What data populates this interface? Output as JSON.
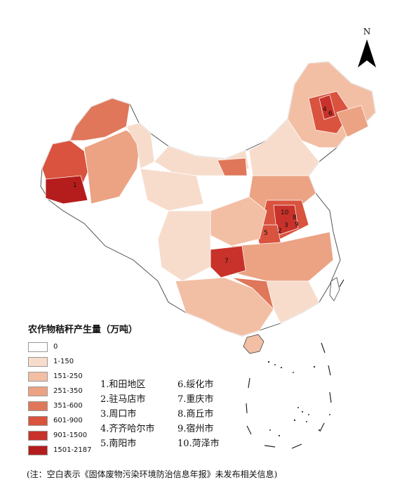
{
  "north_label": "N",
  "legend": {
    "title": "农作物秸秆产生量（万吨）",
    "bins": [
      {
        "label": "0",
        "color": "#ffffff"
      },
      {
        "label": "1-150",
        "color": "#f7dccc"
      },
      {
        "label": "151-250",
        "color": "#f2bfa5"
      },
      {
        "label": "251-350",
        "color": "#eba383"
      },
      {
        "label": "351-600",
        "color": "#e0775a"
      },
      {
        "label": "601-900",
        "color": "#d9533e"
      },
      {
        "label": "901-1500",
        "color": "#c8322a"
      },
      {
        "label": "1501-2187",
        "color": "#b51d1c"
      }
    ]
  },
  "top_regions": [
    {
      "rank": "1",
      "label": "1.和田地区"
    },
    {
      "rank": "2",
      "label": "2.驻马店市"
    },
    {
      "rank": "3",
      "label": "3.周口市"
    },
    {
      "rank": "4",
      "label": "4.齐齐哈尔市"
    },
    {
      "rank": "5",
      "label": "5.南阳市"
    },
    {
      "rank": "6",
      "label": "6.绥化市"
    },
    {
      "rank": "7",
      "label": "7.重庆市"
    },
    {
      "rank": "8",
      "label": "8.商丘市"
    },
    {
      "rank": "9",
      "label": "9.宿州市"
    },
    {
      "rank": "10",
      "label": "10.菏泽市"
    }
  ],
  "note": "(注：空白表示《固体废物污染环境防治信息年报》未发布相关信息)"
}
